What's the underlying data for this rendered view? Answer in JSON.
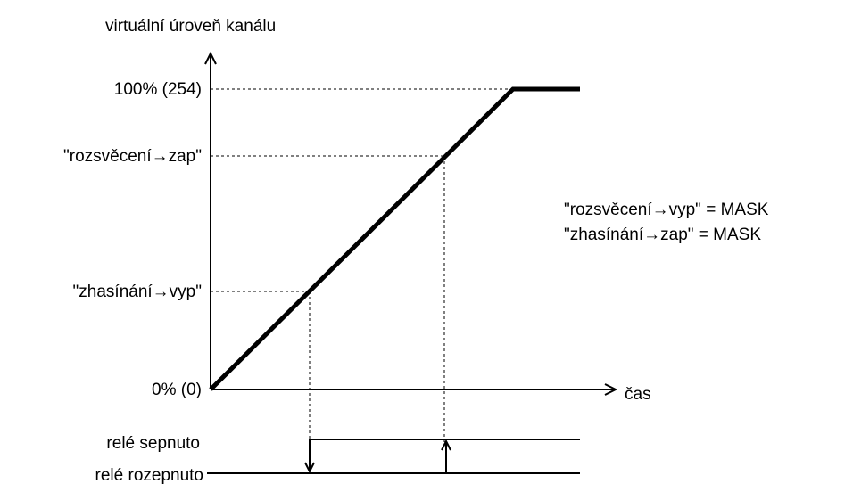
{
  "axis": {
    "y_label": "virtuální úroveň kanálu",
    "x_label": "čas"
  },
  "levels": [
    "100% (254)",
    "\"rozsvěcení→zap\"",
    "\"zhasínání→vyp\"",
    "0% (0)"
  ],
  "notes": [
    "\"rozsvěcení→vyp\" = MASK",
    "\"zhasínání→zap\" = MASK"
  ],
  "relay": [
    "relé sepnuto",
    "relé rozepnuto"
  ]
}
